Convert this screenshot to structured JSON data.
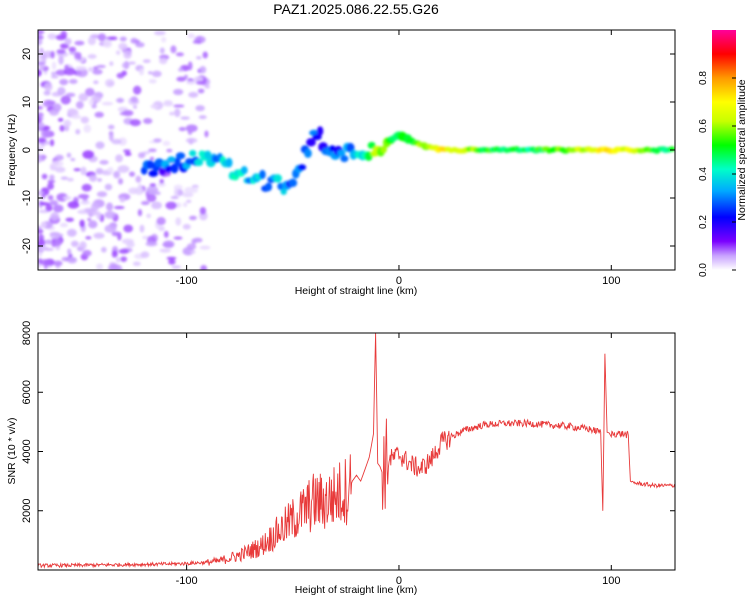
{
  "title": "PAZ1.2025.086.22.55.G26",
  "chart_data": [
    {
      "type": "heatmap",
      "xlabel": "Height of straight line (km)",
      "ylabel": "Frequency (Hz)",
      "xlim": [
        -170,
        130
      ],
      "ylim": [
        -25,
        25
      ],
      "x_ticks": [
        -100,
        0,
        100
      ],
      "y_ticks": [
        -20,
        -10,
        0,
        10,
        20
      ],
      "colorbar": {
        "label": "Normalized spectral amplitude",
        "range": [
          0,
          1
        ],
        "ticks": [
          0.0,
          0.2,
          0.4,
          0.6,
          0.8
        ],
        "tick_labels": [
          "0.0",
          "0.2",
          "0.4",
          "0.6",
          "0.8"
        ],
        "colormap": "purple-blue-cyan-green-yellow-orange-red-magenta",
        "colors": [
          "#ffffff",
          "#c8a2ff",
          "#7a00ff",
          "#0000ff",
          "#00aaff",
          "#00ffc8",
          "#00ff00",
          "#c8ff00",
          "#ffff00",
          "#ff9900",
          "#ff0000",
          "#ff0099"
        ]
      },
      "ridge": [
        {
          "x": -120,
          "y": -4,
          "a": 0.25
        },
        {
          "x": -110,
          "y": -3,
          "a": 0.3
        },
        {
          "x": -100,
          "y": -2,
          "a": 0.35
        },
        {
          "x": -90,
          "y": -1,
          "a": 0.38
        },
        {
          "x": -80,
          "y": -4,
          "a": 0.4
        },
        {
          "x": -70,
          "y": -6,
          "a": 0.4
        },
        {
          "x": -60,
          "y": -7,
          "a": 0.38
        },
        {
          "x": -50,
          "y": -8,
          "a": 0.3
        },
        {
          "x": -40,
          "y": 4,
          "a": 0.3
        },
        {
          "x": -30,
          "y": -1,
          "a": 0.3
        },
        {
          "x": -20,
          "y": 0,
          "a": 0.35
        },
        {
          "x": -10,
          "y": 0,
          "a": 0.6
        },
        {
          "x": 0,
          "y": 3,
          "a": 0.5
        },
        {
          "x": 10,
          "y": 1,
          "a": 0.6
        },
        {
          "x": 20,
          "y": 0,
          "a": 0.75
        },
        {
          "x": 40,
          "y": 0,
          "a": 0.55
        },
        {
          "x": 60,
          "y": 0,
          "a": 0.5
        },
        {
          "x": 80,
          "y": 0,
          "a": 0.6
        },
        {
          "x": 100,
          "y": 0,
          "a": 0.75
        },
        {
          "x": 120,
          "y": 0,
          "a": 0.55
        },
        {
          "x": 130,
          "y": 0,
          "a": 0.5
        }
      ]
    },
    {
      "type": "line",
      "xlabel": "Height of straight line (km)",
      "ylabel": "SNR (10 * v/v)",
      "xlim": [
        -170,
        130
      ],
      "ylim": [
        0,
        8000
      ],
      "x_ticks": [
        -100,
        0,
        100
      ],
      "y_ticks": [
        2000,
        4000,
        6000,
        8000
      ],
      "color": "#e83a3a",
      "series": [
        {
          "x": [
            -170,
            -150,
            -130,
            -110,
            -100,
            -90,
            -85,
            -80,
            -75,
            -70,
            -65,
            -60,
            -55,
            -50,
            -45,
            -40,
            -35,
            -30,
            -25,
            -22,
            -20,
            -18,
            -16,
            -14,
            -12,
            -11,
            -10,
            -8,
            -5,
            0,
            5,
            10,
            15,
            20,
            25,
            30,
            35,
            40,
            50,
            60,
            70,
            80,
            90,
            95,
            96,
            97,
            98,
            100,
            105,
            108,
            109,
            110,
            115,
            120,
            125,
            130
          ],
          "y": [
            150,
            160,
            180,
            200,
            220,
            260,
            300,
            400,
            500,
            650,
            800,
            1100,
            1400,
            1700,
            2000,
            2300,
            2300,
            2500,
            2700,
            3000,
            3200,
            3000,
            3400,
            3800,
            4600,
            8000,
            3600,
            3400,
            3700,
            3900,
            3600,
            3400,
            3700,
            4300,
            4500,
            4700,
            4800,
            4900,
            4950,
            4950,
            4900,
            4850,
            4750,
            4650,
            2000,
            7300,
            4650,
            4600,
            4600,
            4550,
            3000,
            2950,
            2900,
            2850,
            2850,
            2850
          ]
        }
      ]
    }
  ]
}
